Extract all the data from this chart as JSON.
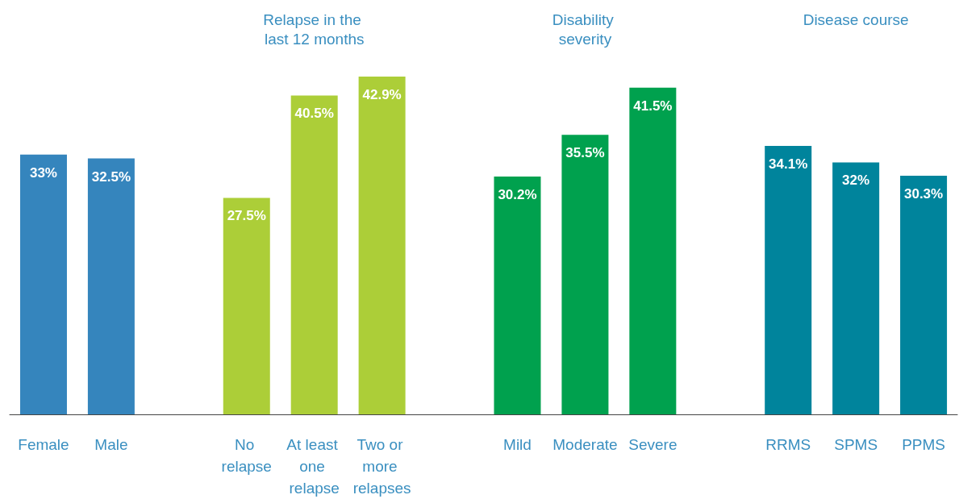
{
  "chart_data": {
    "type": "bar",
    "categories": [
      "Female",
      "Male",
      null,
      "No relapse",
      "At least one relapse",
      "Two or more relapses",
      null,
      "Mild",
      "Moderate",
      "Severe",
      null,
      "RRMS",
      "SPMS",
      "PPMS"
    ],
    "values": [
      33,
      32.5,
      null,
      27.5,
      40.5,
      42.9,
      null,
      30.2,
      35.5,
      41.5,
      null,
      34.1,
      32,
      30.3
    ],
    "value_labels": [
      "33%",
      "32.5%",
      null,
      "27.5%",
      "40.5%",
      "42.9%",
      null,
      "30.2%",
      "35.5%",
      "41.5%",
      null,
      "34.1%",
      "32%",
      "30.3%"
    ],
    "colors": [
      "#3585bd",
      "#3585bd",
      "#ffffff",
      "#acce38",
      "#acce38",
      "#acce38",
      "#ffffff",
      "#00a14e",
      "#00a14e",
      "#00a14e",
      "#ffffff",
      "#00849c",
      "#00849c",
      "#00849c"
    ],
    "annotations": [
      "Relapse in the last 12 months",
      "Disability severity",
      "Disease course"
    ],
    "grid": false
  }
}
